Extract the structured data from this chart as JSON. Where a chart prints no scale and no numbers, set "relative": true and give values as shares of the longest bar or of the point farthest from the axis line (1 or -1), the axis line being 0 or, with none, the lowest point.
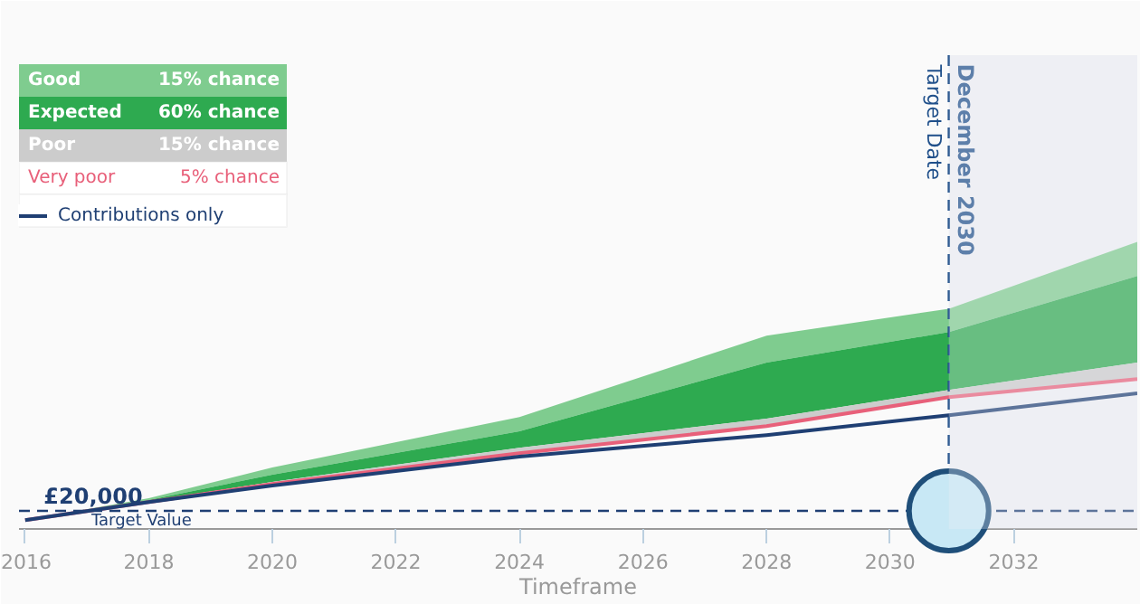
{
  "chart_data": {
    "type": "area",
    "relative": true,
    "xlabel": "Timeframe",
    "x": [
      2016,
      2018,
      2020,
      2024,
      2028,
      2030.95,
      2034
    ],
    "xlim": [
      2015.9,
      2034
    ],
    "xticks": [
      2016,
      2018,
      2020,
      2022,
      2024,
      2026,
      2028,
      2030,
      2032
    ],
    "series": [
      {
        "name": "Good",
        "color": "#7fcc8f",
        "values": [
          0.031,
          0.107,
          0.214,
          0.39,
          0.673,
          0.767,
          1.0
        ]
      },
      {
        "name": "Expected",
        "color": "#2eaa50",
        "values": [
          0.031,
          0.101,
          0.189,
          0.34,
          0.579,
          0.686,
          0.881
        ]
      },
      {
        "name": "Poor",
        "color": "#cccccc",
        "values": [
          0.031,
          0.097,
          0.164,
          0.283,
          0.384,
          0.484,
          0.579
        ]
      },
      {
        "name": "Very poor",
        "type": "line",
        "color": "#e8607a",
        "values": [
          0.031,
          0.094,
          0.157,
          0.264,
          0.358,
          0.459,
          0.522
        ]
      },
      {
        "name": "Contributions only",
        "type": "line",
        "color": "#1f3f73",
        "values": [
          0.031,
          0.094,
          0.151,
          0.252,
          0.327,
          0.396,
          0.472
        ]
      },
      {
        "type": "scatter",
        "marker": "circle",
        "color": "#c8e8f5",
        "x": [
          2030.95
        ],
        "values": [
          0.063
        ]
      }
    ],
    "ref_lines": [
      {
        "axis": "y",
        "value": 0.063,
        "label": "Target Value",
        "color": "#1f3f73",
        "line_style": "dashed"
      },
      {
        "axis": "x",
        "value": 2030.95,
        "label": "Target Date",
        "color": "#1f4f8a",
        "line_style": "dashed"
      }
    ],
    "bands": [
      {
        "axis": "x",
        "from": 2030.95,
        "to": 2034,
        "label": null,
        "color": "#eef0f4"
      }
    ],
    "annotations": [
      "15% chance",
      "60% chance",
      "15% chance",
      "5% chance",
      {
        "text": "£20,000",
        "x": 2016.3,
        "y": 0.063
      },
      {
        "text": "December 2030",
        "x": 2030.95,
        "y": 1.62
      }
    ],
    "legend": "top left",
    "grid": false
  }
}
